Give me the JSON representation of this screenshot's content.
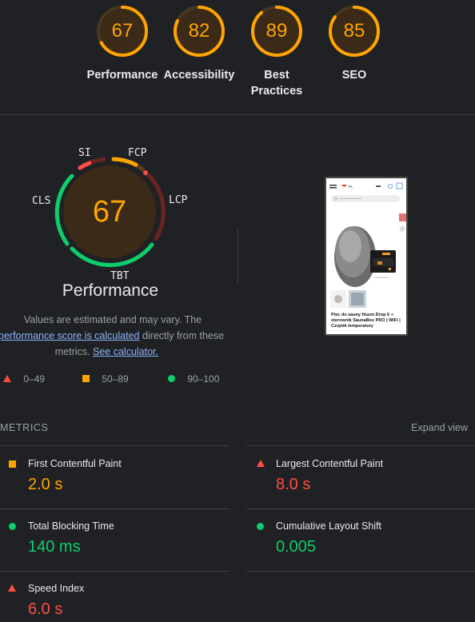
{
  "categories": [
    {
      "score": "67",
      "label": "Performance",
      "fraction": 0.67
    },
    {
      "score": "82",
      "label": "Accessibility",
      "fraction": 0.82
    },
    {
      "score": "89",
      "label": "Best Practices",
      "label_lines": [
        "Best",
        "Practices"
      ],
      "fraction": 0.89
    },
    {
      "score": "85",
      "label": "SEO",
      "fraction": 0.85
    }
  ],
  "gauge": {
    "score": "67",
    "labels": {
      "si": "SI",
      "fcp": "FCP",
      "lcp": "LCP",
      "tbt": "TBT",
      "cls": "CLS"
    },
    "title": "Performance"
  },
  "description": {
    "line1": "Values are estimated and may vary. The",
    "link1": "performance score is calculated",
    "mid": " directly from these",
    "pre2": "metrics. ",
    "link2": "See calculator."
  },
  "legend": [
    {
      "range": "0–49",
      "shape": "triangle",
      "color": "#ff4e42"
    },
    {
      "range": "50–89",
      "shape": "square",
      "color": "#ffa400"
    },
    {
      "range": "90–100",
      "shape": "circle",
      "color": "#0cce6b"
    }
  ],
  "screenshot": {
    "product_text": "Piec do sauny Huum Drop 6 + sterownik SaunaBox PRO | WiFi | Czujnik temperatury",
    "lang": "PL"
  },
  "metrics": {
    "heading": "METRICS",
    "expand": "Expand view",
    "items": [
      {
        "title": "First Contentful Paint",
        "value": "2.0 s",
        "status": "average"
      },
      {
        "title": "Largest Contentful Paint",
        "value": "8.0 s",
        "status": "fail"
      },
      {
        "title": "Total Blocking Time",
        "value": "140 ms",
        "status": "pass"
      },
      {
        "title": "Cumulative Layout Shift",
        "value": "0.005",
        "status": "pass"
      },
      {
        "title": "Speed Index",
        "value": "6.0 s",
        "status": "fail"
      }
    ]
  },
  "colors": {
    "fail": "#ff4e42",
    "average": "#ffa400",
    "pass": "#0cce6b"
  }
}
